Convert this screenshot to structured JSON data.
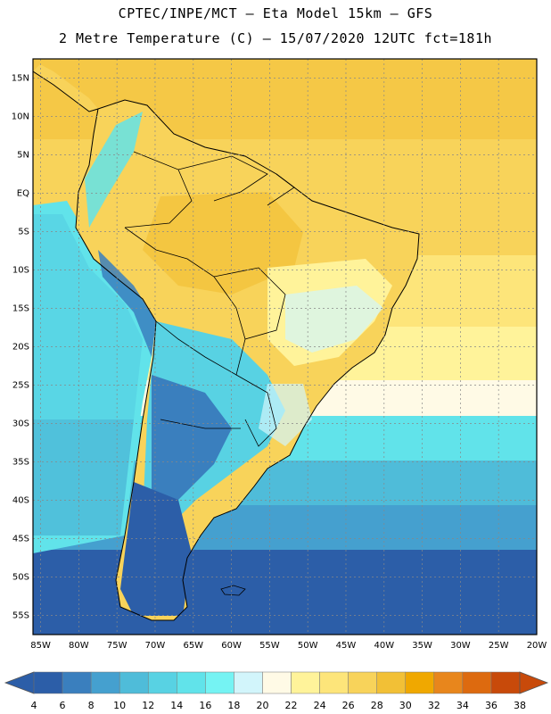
{
  "header": {
    "line1": "CPTEC/INPE/MCT –  Eta Model 15km – GFS",
    "line2": "2 Metre Temperature (C) – 15/07/2020 12UTC fct=181h"
  },
  "map": {
    "lat_labels": [
      "15N",
      "10N",
      "5N",
      "EQ",
      "5S",
      "10S",
      "15S",
      "20S",
      "25S",
      "30S",
      "35S",
      "40S",
      "45S",
      "50S",
      "55S"
    ],
    "lon_labels": [
      "85W",
      "80W",
      "75W",
      "70W",
      "65W",
      "60W",
      "55W",
      "50W",
      "45W",
      "40W",
      "35W",
      "30W",
      "25W",
      "20W"
    ],
    "grid": "dotted"
  },
  "colorbar": {
    "labels": [
      "4",
      "6",
      "8",
      "10",
      "12",
      "14",
      "16",
      "18",
      "20",
      "22",
      "24",
      "26",
      "28",
      "30",
      "32",
      "34",
      "36",
      "38"
    ],
    "colors": [
      "#2c5ea8",
      "#3a7fbe",
      "#45a0cf",
      "#4fbcd9",
      "#58d2e3",
      "#61e3ea",
      "#75f3f3",
      "#d2f5fb",
      "#fffae6",
      "#fff39a",
      "#fde57a",
      "#f8d35a",
      "#f2c036",
      "#f0a800",
      "#e8861c",
      "#dd6a0f",
      "#c84a0a"
    ],
    "left_arrow_color": "#2c5ea8",
    "right_arrow_color": "#c84a0a"
  }
}
